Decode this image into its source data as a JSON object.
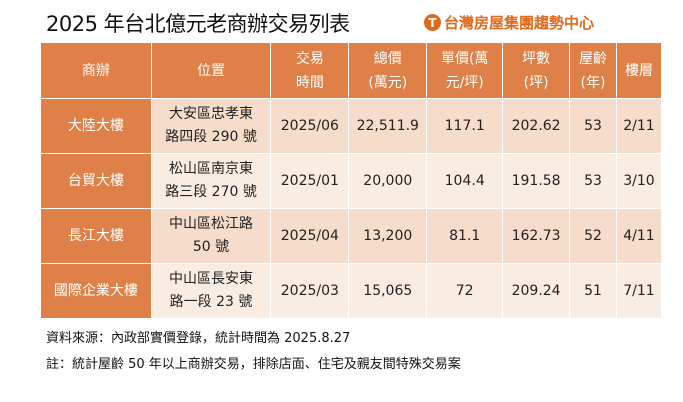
{
  "title": "2025 年台北億元老商辦交易列表",
  "logo": "台灣房屋集團趨勢中心",
  "headers": [
    [
      "商辦"
    ],
    [
      "位置"
    ],
    [
      "交易",
      "時間"
    ],
    [
      "總價",
      "(萬元)"
    ],
    [
      "單價(萬",
      "元/坪)"
    ],
    [
      "坪數",
      "(坪)"
    ],
    [
      "屋齡",
      "(年)"
    ],
    [
      "樓層"
    ]
  ],
  "rows": [
    {
      "name": "大陸大樓",
      "loc": [
        "大安區忠孝東",
        "路四段 290 號"
      ],
      "date": "2025/06",
      "total": "22,511.9",
      "unit": "117.1",
      "area": "202.62",
      "age": "53",
      "floor": "2/11"
    },
    {
      "name": "台貿大樓",
      "loc": [
        "松山區南京東",
        "路三段 270 號"
      ],
      "date": "2025/01",
      "total": "20,000",
      "unit": "104.4",
      "area": "191.58",
      "age": "53",
      "floor": "3/10"
    },
    {
      "name": "長江大樓",
      "loc": [
        "中山區松江路",
        "50 號"
      ],
      "date": "2025/04",
      "total": "13,200",
      "unit": "81.1",
      "area": "162.73",
      "age": "52",
      "floor": "4/11"
    },
    {
      "name": "國際企業大樓",
      "loc": [
        "中山區長安東",
        "路一段 23 號"
      ],
      "date": "2025/03",
      "total": "15,065",
      "unit": "72",
      "area": "209.24",
      "age": "51",
      "floor": "7/11"
    }
  ],
  "notes": [
    "資料來源：內政部實價登錄，統計時間為 2025.8.27",
    "註：統計屋齡 50 年以上商辦交易，排除店面、住宅及親友間特殊交易案"
  ],
  "colors": {
    "header": "#df8048",
    "row_dark": "#f5dccb",
    "row_light": "#f9ece3",
    "brand": "#e06a1c"
  }
}
